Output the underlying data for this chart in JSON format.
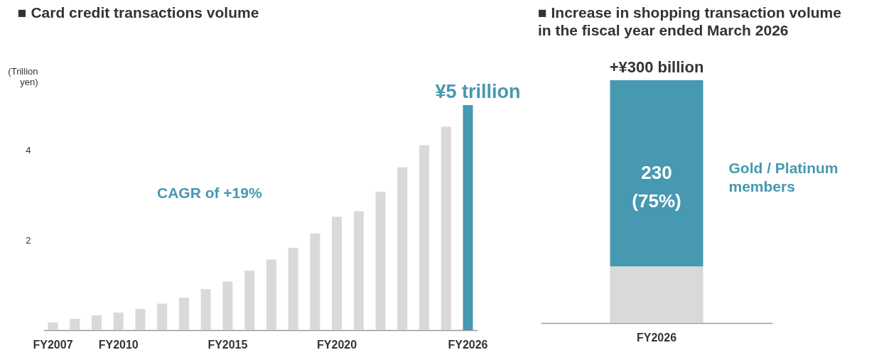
{
  "chart_data": [
    {
      "type": "bar",
      "title": "■ Card credit transactions volume",
      "ylabel": "(Trillion yen)",
      "categories": [
        "FY2007",
        null,
        null,
        "FY2010",
        null,
        null,
        null,
        null,
        "FY2015",
        null,
        null,
        null,
        null,
        "FY2020",
        null,
        null,
        null,
        null,
        null,
        "FY2026"
      ],
      "values": [
        0.17,
        0.25,
        0.33,
        0.39,
        0.47,
        0.59,
        0.72,
        0.91,
        1.08,
        1.32,
        1.57,
        1.83,
        2.15,
        2.52,
        2.64,
        3.07,
        3.62,
        4.11,
        4.52,
        5
      ],
      "colors": [
        "#d9d9d9",
        "#d9d9d9",
        "#d9d9d9",
        "#d9d9d9",
        "#d9d9d9",
        "#d9d9d9",
        "#d9d9d9",
        "#d9d9d9",
        "#d9d9d9",
        "#d9d9d9",
        "#d9d9d9",
        "#d9d9d9",
        "#d9d9d9",
        "#d9d9d9",
        "#d9d9d9",
        "#d9d9d9",
        "#d9d9d9",
        "#d9d9d9",
        "#d9d9d9",
        "#4699b0"
      ],
      "ylim": [
        0,
        5
      ],
      "yticks": [
        2,
        4
      ],
      "annotations": [
        "CAGR of +19%",
        {
          "text": "¥5 trillion",
          "x": "FY2026",
          "y": 5
        }
      ]
    },
    {
      "type": "bar",
      "stacked": true,
      "title": "■ Increase in shopping transaction volume in the fiscal year ended March 2026",
      "categories": [
        "FY2026"
      ],
      "series": [
        {
          "color": "#d9d9d9",
          "values": [
            70
          ]
        },
        {
          "name": "Gold / Platinum members",
          "color": "#4699b0",
          "values": [
            230
          ],
          "value_labels": [
            "230 (75%)"
          ]
        }
      ],
      "totals": [
        "+¥300 billion"
      ],
      "tick_labels": "x"
    }
  ]
}
